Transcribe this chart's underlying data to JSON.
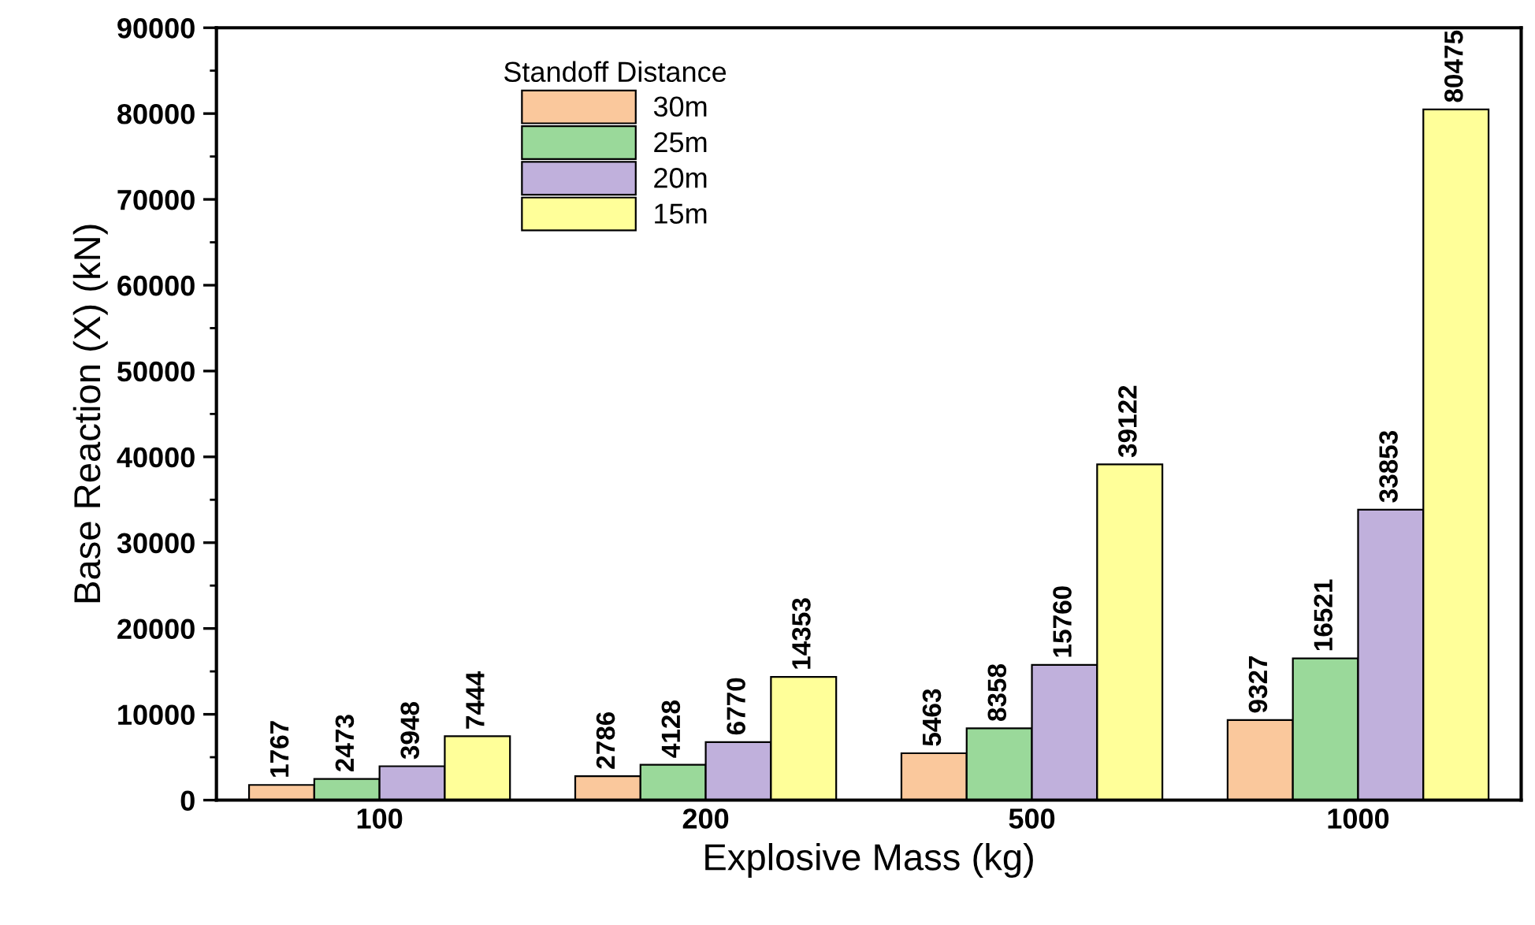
{
  "chart_data": {
    "type": "bar",
    "xlabel": "Explosive Mass (kg)",
    "ylabel": "Base Reaction (X) (kN)",
    "legend_title": "Standoff Distance",
    "categories": [
      "100",
      "200",
      "500",
      "1000"
    ],
    "series": [
      {
        "name": "30m",
        "color": "#fac89c",
        "values": [
          1767,
          2786,
          5463,
          9327
        ]
      },
      {
        "name": "25m",
        "color": "#9ad99a",
        "values": [
          2473,
          4128,
          8358,
          16521
        ]
      },
      {
        "name": "20m",
        "color": "#c0b0dc",
        "values": [
          3948,
          6770,
          15760,
          33853
        ]
      },
      {
        "name": "15m",
        "color": "#ffff99",
        "values": [
          7444,
          14353,
          39122,
          80475
        ]
      }
    ],
    "ylim": [
      0,
      90000
    ],
    "yticks": [
      0,
      10000,
      20000,
      30000,
      40000,
      50000,
      60000,
      70000,
      80000,
      90000
    ],
    "data_labels": true,
    "legend": "top left",
    "grid": false
  }
}
